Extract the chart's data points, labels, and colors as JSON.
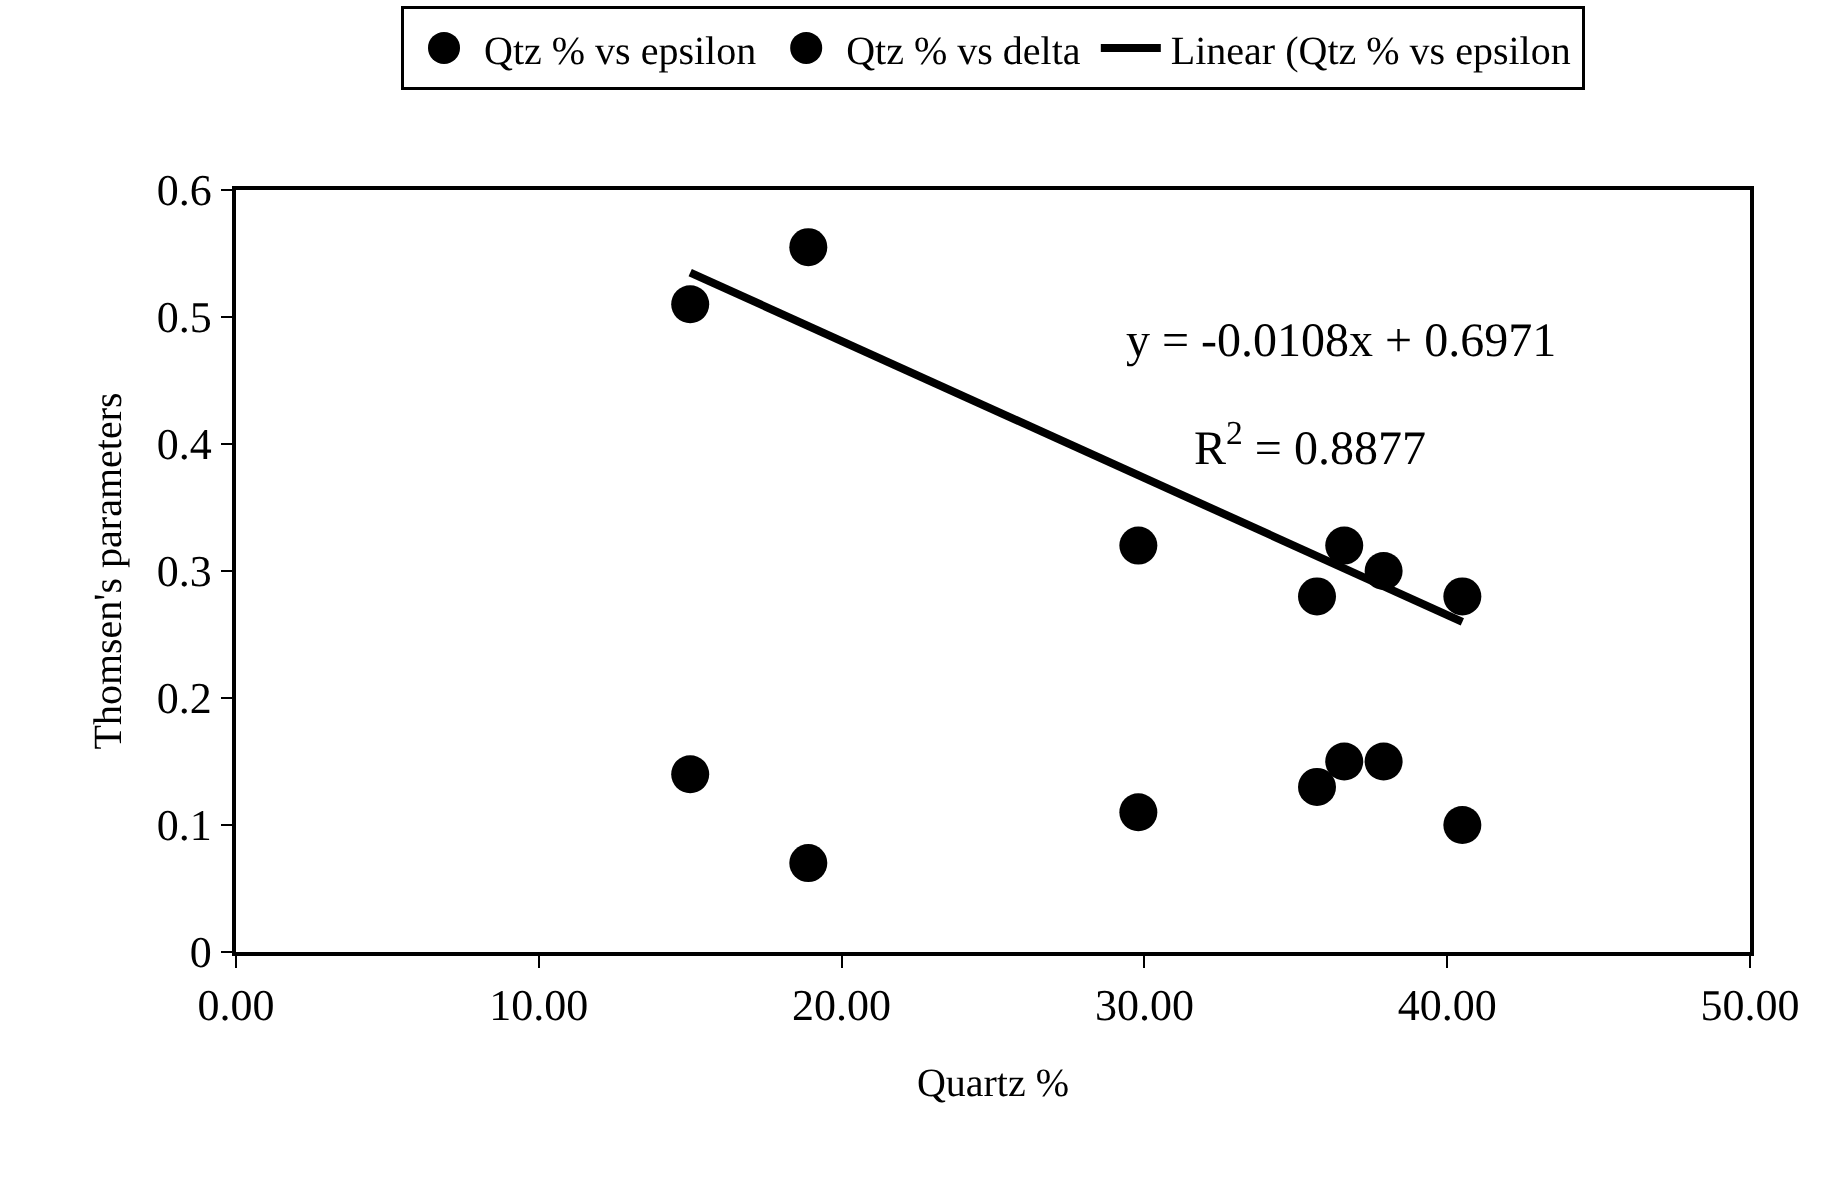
{
  "chart_data": {
    "type": "scatter",
    "xlabel": "Quartz %",
    "ylabel": "Thomsen's parameters",
    "x": [
      15.0,
      18.9,
      29.8,
      35.7,
      36.6,
      37.9,
      40.5
    ],
    "series": [
      {
        "name": "Qtz % vs epsilon",
        "color": "#000000",
        "marker": "circle",
        "values": [
          0.51,
          0.555,
          0.32,
          0.28,
          0.32,
          0.3,
          0.28
        ]
      },
      {
        "name": "Qtz % vs delta",
        "color": "#000000",
        "marker": "circle",
        "values": [
          0.14,
          0.07,
          0.11,
          0.13,
          0.15,
          0.15,
          0.1
        ]
      },
      {
        "name": "Linear (Qtz % vs epsilon",
        "type": "line",
        "color": "#000000",
        "marker": "none",
        "line_style": "solid",
        "x": [
          15.0,
          40.5
        ],
        "values": [
          0.535,
          0.26
        ]
      }
    ],
    "xlim": [
      0,
      50
    ],
    "xticks": [
      {
        "value": 0,
        "label": "0.00"
      },
      {
        "value": 10,
        "label": "10.00"
      },
      {
        "value": 20,
        "label": "20.00"
      },
      {
        "value": 30,
        "label": "30.00"
      },
      {
        "value": 40,
        "label": "40.00"
      },
      {
        "value": 50,
        "label": "50.00"
      }
    ],
    "ylim": [
      0,
      0.6
    ],
    "yticks": [
      0,
      0.1,
      0.2,
      0.3,
      0.4,
      0.5,
      0.6
    ],
    "grid": false,
    "legend": "top",
    "annotations": [
      "y = -0.0108x + 0.6971",
      "R$^{2}$ = 0.8877"
    ]
  }
}
